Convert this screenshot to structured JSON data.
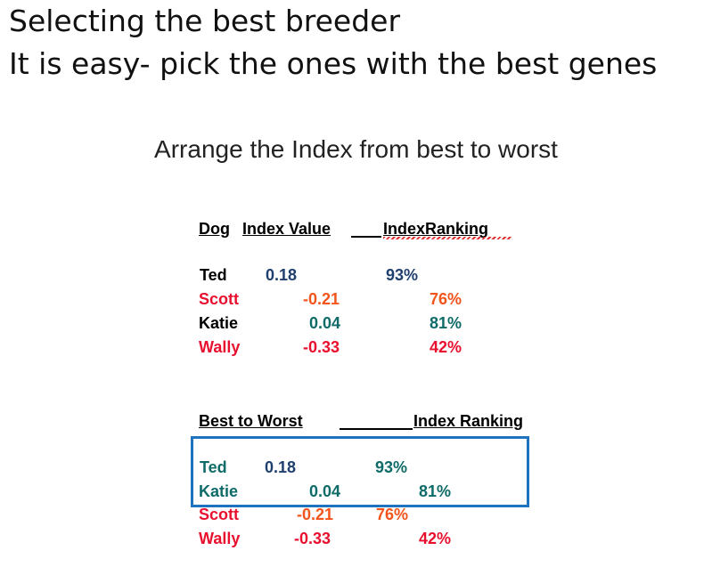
{
  "heading": {
    "line1": "Selecting the best breeder",
    "line2": "It is easy- pick the ones with the best genes"
  },
  "instruction": "Arrange the Index from best to worst",
  "table1": {
    "headers": {
      "dog": "Dog",
      "index_value": "Index Value",
      "index_ranking": "IndexRanking"
    },
    "rows": [
      {
        "dog": "Ted",
        "value": "0.18",
        "ranking": "93%"
      },
      {
        "dog": "Scott",
        "value": "-0.21",
        "ranking": "76%"
      },
      {
        "dog": "Katie",
        "value": "0.04",
        "ranking": "81%"
      },
      {
        "dog": "Wally",
        "value": "-0.33",
        "ranking": "42%"
      }
    ]
  },
  "table2": {
    "headers": {
      "best_to_worst": "Best  to  Worst",
      "index_ranking": "Index Ranking"
    },
    "rows": [
      {
        "dog": "Ted",
        "value": "0.18",
        "ranking": "93%"
      },
      {
        "dog": "Katie",
        "value": "0.04",
        "ranking": "81%"
      },
      {
        "dog": "Scott",
        "value": "-0.21",
        "ranking": "76%"
      },
      {
        "dog": "Wally",
        "value": "-0.33",
        "ranking": "42%"
      }
    ]
  },
  "colors": {
    "black": "#000000",
    "navy": "#1f3f6e",
    "red": "#e8102e",
    "orange": "#f2541b",
    "teal": "#0e6b68",
    "box_blue": "#1e73be"
  }
}
